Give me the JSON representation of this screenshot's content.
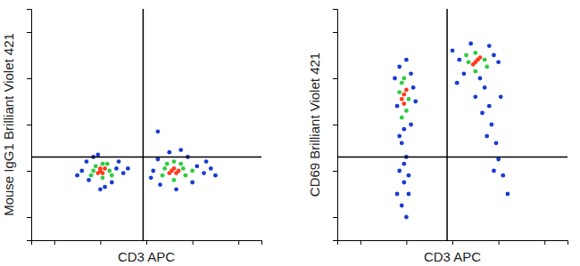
{
  "chart_data": [
    {
      "type": "scatter",
      "x_label": "CD3 APC",
      "y_label": "Mouse IgG1 Brilliant Violet 421",
      "x": [
        22,
        24,
        37,
        40,
        29,
        32,
        25,
        38,
        20,
        42,
        30,
        27,
        35,
        53,
        55,
        72,
        75,
        60,
        63,
        52,
        78,
        68,
        56,
        80,
        70,
        65,
        76,
        55,
        27,
        34,
        31,
        31,
        28,
        35,
        26,
        33,
        58,
        66,
        62,
        62,
        57,
        67,
        59,
        65,
        70,
        30,
        31,
        32,
        30,
        29,
        61,
        62,
        63,
        60,
        64
      ],
      "y": [
        30,
        34,
        31,
        29,
        37,
        23,
        26,
        34,
        28,
        31,
        22,
        36,
        25,
        30,
        35,
        32,
        29,
        38,
        22,
        27,
        31,
        36,
        24,
        28,
        25,
        39,
        34,
        47,
        30,
        30,
        33,
        27,
        32,
        28,
        28,
        33,
        31,
        31,
        34,
        26,
        28,
        28,
        33,
        33,
        30,
        30,
        29,
        31,
        31,
        29,
        30,
        31,
        29,
        29,
        30
      ],
      "colors": [
        "#1a3bd1",
        "#1a3bd1",
        "#1a3bd1",
        "#1a3bd1",
        "#1a3bd1",
        "#1a3bd1",
        "#1a3bd1",
        "#1a3bd1",
        "#1a3bd1",
        "#1a3bd1",
        "#1a3bd1",
        "#1a3bd1",
        "#1a3bd1",
        "#1a3bd1",
        "#1a3bd1",
        "#1a3bd1",
        "#1a3bd1",
        "#1a3bd1",
        "#1a3bd1",
        "#1a3bd1",
        "#1a3bd1",
        "#1a3bd1",
        "#1a3bd1",
        "#1a3bd1",
        "#1a3bd1",
        "#1a3bd1",
        "#1a3bd1",
        "#1a3bd1",
        "#2ecc40",
        "#2ecc40",
        "#2ecc40",
        "#2ecc40",
        "#2ecc40",
        "#2ecc40",
        "#2ecc40",
        "#2ecc40",
        "#2ecc40",
        "#2ecc40",
        "#2ecc40",
        "#2ecc40",
        "#2ecc40",
        "#2ecc40",
        "#2ecc40",
        "#2ecc40",
        "#2ecc40",
        "#ff3b1f",
        "#ff3b1f",
        "#ff3b1f",
        "#ff3b1f",
        "#ff3b1f",
        "#ff3b1f",
        "#ff3b1f",
        "#ff3b1f",
        "#ff3b1f",
        "#ff3b1f"
      ],
      "xlim": [
        0,
        100
      ],
      "ylim": [
        0,
        100
      ],
      "xticks": [
        10,
        30,
        50,
        70,
        90
      ],
      "yticks": [
        10,
        30,
        50,
        70,
        90
      ],
      "tick_labels": false,
      "quadrant": {
        "x": 48.6,
        "y": 36
      }
    },
    {
      "type": "scatter",
      "x_label": "CD3 APC",
      "y_label": "CD69 Brilliant Violet 421",
      "x": [
        27,
        30,
        29,
        28,
        30,
        27,
        29,
        31,
        28,
        30,
        26,
        33,
        25,
        32,
        27,
        29,
        31,
        26,
        32,
        34,
        53,
        68,
        58,
        62,
        50,
        70,
        55,
        66,
        64,
        66,
        67,
        69,
        70,
        72,
        68,
        65,
        63,
        71,
        74,
        60,
        52,
        28,
        30,
        27,
        31,
        29,
        28,
        57,
        64,
        60,
        60,
        56,
        65,
        29,
        28,
        30,
        29,
        60,
        61,
        59,
        62
      ],
      "y": [
        75,
        78,
        48,
        42,
        36,
        30,
        25,
        20,
        15,
        10,
        58,
        66,
        70,
        50,
        45,
        33,
        28,
        20,
        72,
        60,
        78,
        80,
        85,
        70,
        82,
        77,
        72,
        84,
        66,
        58,
        50,
        42,
        35,
        28,
        30,
        45,
        55,
        62,
        20,
        62,
        68,
        68,
        56,
        64,
        61,
        70,
        53,
        77,
        78,
        81,
        73,
        80,
        75,
        63,
        61,
        65,
        59,
        77,
        78,
        76,
        79
      ],
      "colors": [
        "#1a3bd1",
        "#1a3bd1",
        "#1a3bd1",
        "#1a3bd1",
        "#1a3bd1",
        "#1a3bd1",
        "#1a3bd1",
        "#1a3bd1",
        "#1a3bd1",
        "#1a3bd1",
        "#1a3bd1",
        "#1a3bd1",
        "#1a3bd1",
        "#1a3bd1",
        "#1a3bd1",
        "#1a3bd1",
        "#1a3bd1",
        "#1a3bd1",
        "#1a3bd1",
        "#1a3bd1",
        "#1a3bd1",
        "#1a3bd1",
        "#1a3bd1",
        "#1a3bd1",
        "#1a3bd1",
        "#1a3bd1",
        "#1a3bd1",
        "#1a3bd1",
        "#1a3bd1",
        "#1a3bd1",
        "#1a3bd1",
        "#1a3bd1",
        "#1a3bd1",
        "#1a3bd1",
        "#1a3bd1",
        "#1a3bd1",
        "#1a3bd1",
        "#1a3bd1",
        "#1a3bd1",
        "#1a3bd1",
        "#1a3bd1",
        "#2ecc40",
        "#2ecc40",
        "#2ecc40",
        "#2ecc40",
        "#2ecc40",
        "#2ecc40",
        "#2ecc40",
        "#2ecc40",
        "#2ecc40",
        "#2ecc40",
        "#2ecc40",
        "#2ecc40",
        "#ff3b1f",
        "#ff3b1f",
        "#ff3b1f",
        "#ff3b1f",
        "#ff3b1f",
        "#ff3b1f",
        "#ff3b1f",
        "#ff3b1f"
      ],
      "xlim": [
        0,
        100
      ],
      "ylim": [
        0,
        100
      ],
      "xticks": [
        10,
        30,
        50,
        70,
        90
      ],
      "yticks": [
        10,
        30,
        50,
        70,
        90
      ],
      "tick_labels": false,
      "quadrant": {
        "x": 47.7,
        "y": 36
      }
    }
  ]
}
